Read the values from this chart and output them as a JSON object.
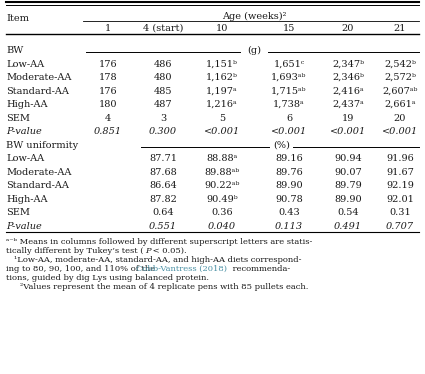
{
  "col_headers": [
    "1",
    "4 (start)",
    "10",
    "15",
    "20",
    "21"
  ],
  "bw_rows": [
    {
      "label": "Low-AA",
      "vals": [
        "176",
        "486",
        "1,151ᵇ",
        "1,651ᶜ",
        "2,347ᵇ",
        "2,542ᵇ"
      ]
    },
    {
      "label": "Moderate-AA",
      "vals": [
        "178",
        "480",
        "1,162ᵇ",
        "1,693ᵃᵇ",
        "2,346ᵇ",
        "2,572ᵇ"
      ]
    },
    {
      "label": "Standard-AA",
      "vals": [
        "176",
        "485",
        "1,197ᵃ",
        "1,715ᵃᵇ",
        "2,416ᵃ",
        "2,607ᵃᵇ"
      ]
    },
    {
      "label": "High-AA",
      "vals": [
        "180",
        "487",
        "1,216ᵃ",
        "1,738ᵃ",
        "2,437ᵃ",
        "2,661ᵃ"
      ]
    },
    {
      "label": "SEM",
      "vals": [
        "4",
        "3",
        "5",
        "6",
        "19",
        "20"
      ]
    },
    {
      "label": "P-value",
      "vals": [
        "0.851",
        "0.300",
        "<0.001",
        "<0.001",
        "<0.001",
        "<0.001"
      ],
      "italic": true
    }
  ],
  "bu_rows": [
    {
      "label": "Low-AA",
      "vals": [
        "",
        "87.71",
        "88.88ᵃ",
        "89.16",
        "90.94",
        "91.96"
      ]
    },
    {
      "label": "Moderate-AA",
      "vals": [
        "",
        "87.68",
        "89.88ᵃᵇ",
        "89.76",
        "90.07",
        "91.67"
      ]
    },
    {
      "label": "Standard-AA",
      "vals": [
        "",
        "86.64",
        "90.22ᵃᵇ",
        "89.90",
        "89.79",
        "92.19"
      ]
    },
    {
      "label": "High-AA",
      "vals": [
        "",
        "87.82",
        "90.49ᵇ",
        "90.78",
        "89.90",
        "92.01"
      ]
    },
    {
      "label": "SEM",
      "vals": [
        "",
        "0.64",
        "0.36",
        "0.43",
        "0.54",
        "0.31"
      ]
    },
    {
      "label": "P-value",
      "vals": [
        "",
        "0.551",
        "0.040",
        "0.113",
        "0.491",
        "0.707"
      ],
      "italic": true
    }
  ],
  "text_color": "#1a1a1a",
  "link_color": "#4a90a4",
  "bg_color": "#ffffff"
}
